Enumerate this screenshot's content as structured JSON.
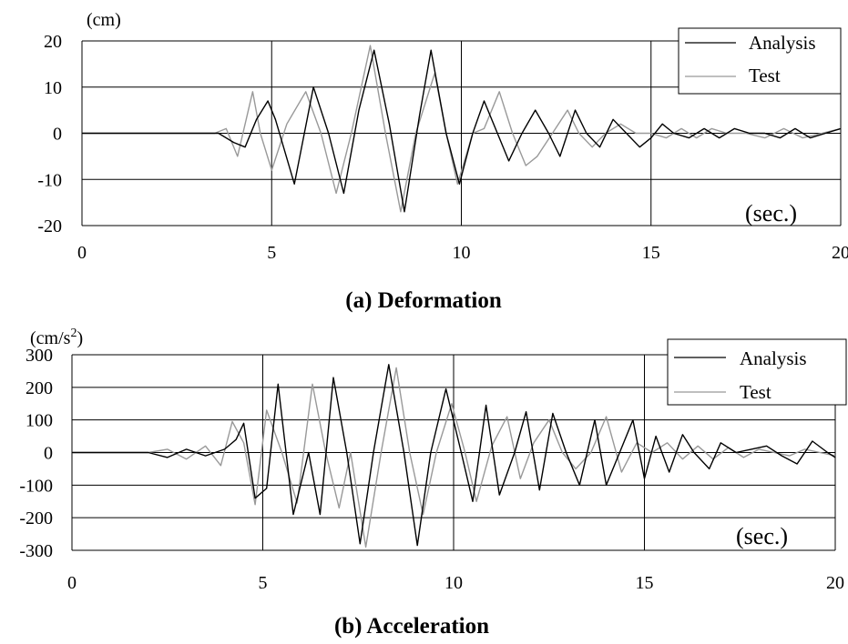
{
  "chart_data": [
    {
      "type": "line",
      "title": "(a) Deformation",
      "unit_label": "(cm)",
      "xlabel_inline": "(sec.)",
      "xlim": [
        0,
        20
      ],
      "ylim": [
        -20,
        20
      ],
      "x_ticks": [
        "0",
        "5",
        "10",
        "15",
        "20"
      ],
      "y_ticks": [
        "20",
        "10",
        "0",
        "-10",
        "-20"
      ],
      "grid": true,
      "legend_position": "top-right",
      "series": [
        {
          "name": "Analysis",
          "color": "#000000",
          "x": [
            0,
            2,
            3.6,
            4.0,
            4.3,
            4.6,
            4.9,
            5.1,
            5.6,
            6.1,
            6.5,
            6.9,
            7.3,
            7.7,
            8.1,
            8.5,
            8.9,
            9.2,
            9.6,
            9.95,
            10.3,
            10.6,
            10.9,
            11.25,
            11.6,
            11.95,
            12.3,
            12.6,
            13.0,
            13.3,
            13.65,
            14.0,
            14.35,
            14.7,
            15.0,
            15.3,
            15.6,
            16.0,
            16.4,
            16.8,
            17.2,
            17.6,
            18.0,
            18.4,
            18.8,
            19.2,
            19.6,
            20.0
          ],
          "y": [
            0,
            0,
            0,
            -2,
            -3,
            3,
            7,
            3,
            -11,
            10,
            0,
            -13,
            5,
            18,
            2,
            -17,
            4,
            18,
            0,
            -11,
            0,
            7,
            1,
            -6,
            0,
            5,
            0,
            -5,
            5,
            0,
            -3,
            3,
            0,
            -3,
            -1,
            2,
            0,
            -1,
            1,
            -1,
            1,
            0,
            0,
            -1,
            1,
            -1,
            0,
            1
          ]
        },
        {
          "name": "Test",
          "color": "#999999",
          "x": [
            0,
            2,
            3.5,
            3.8,
            4.1,
            4.5,
            4.7,
            5.0,
            5.4,
            5.9,
            6.3,
            6.7,
            7.1,
            7.6,
            8.0,
            8.4,
            8.8,
            9.3,
            9.6,
            9.9,
            10.3,
            10.6,
            11.0,
            11.35,
            11.7,
            12.0,
            12.4,
            12.8,
            13.1,
            13.45,
            13.8,
            14.2,
            14.6,
            15.0,
            15.4,
            15.8,
            16.2,
            16.6,
            17.0,
            17.5,
            18.0,
            18.5,
            19.0,
            19.5,
            20.0
          ],
          "y": [
            0,
            0,
            0,
            1,
            -5,
            9,
            0,
            -8,
            2,
            9,
            0,
            -13,
            0,
            19,
            0,
            -17,
            0,
            13,
            0,
            -11,
            0,
            1,
            9,
            0,
            -7,
            -5,
            0,
            5,
            0,
            -3,
            0,
            2,
            0,
            0,
            -1,
            1,
            -1,
            1,
            0,
            0,
            -1,
            1,
            -1,
            0,
            1
          ]
        }
      ]
    },
    {
      "type": "line",
      "title": "(b) Acceleration",
      "unit_label": "(cm/s",
      "unit_sup": "2",
      "unit_close": ")",
      "xlabel_inline": "(sec.)",
      "xlim": [
        0,
        20
      ],
      "ylim": [
        -300,
        300
      ],
      "x_ticks": [
        "0",
        "5",
        "10",
        "15",
        "20"
      ],
      "y_ticks": [
        "300",
        "200",
        "100",
        "0",
        "-100",
        "-200",
        "-300"
      ],
      "grid": true,
      "legend_position": "top-right",
      "series": [
        {
          "name": "Analysis",
          "color": "#000000",
          "x": [
            0,
            1.5,
            2.0,
            2.5,
            3.0,
            3.5,
            4.0,
            4.3,
            4.5,
            4.8,
            5.1,
            5.4,
            5.8,
            6.2,
            6.5,
            6.85,
            7.2,
            7.55,
            7.9,
            8.3,
            8.7,
            9.05,
            9.4,
            9.8,
            10.2,
            10.5,
            10.85,
            11.2,
            11.6,
            11.9,
            12.25,
            12.6,
            12.95,
            13.3,
            13.7,
            14.0,
            14.35,
            14.7,
            15.0,
            15.3,
            15.65,
            16.0,
            16.3,
            16.7,
            17.0,
            17.4,
            17.8,
            18.2,
            18.6,
            19.0,
            19.4,
            19.8,
            20.0
          ],
          "y": [
            0,
            0,
            0,
            -15,
            10,
            -10,
            10,
            40,
            90,
            -140,
            -110,
            210,
            -190,
            0,
            -190,
            230,
            0,
            -280,
            0,
            270,
            0,
            -285,
            0,
            195,
            0,
            -150,
            145,
            -130,
            0,
            125,
            -115,
            120,
            0,
            -100,
            100,
            -100,
            0,
            100,
            -80,
            50,
            -60,
            55,
            0,
            -50,
            30,
            0,
            10,
            20,
            -10,
            -35,
            35,
            0,
            -15
          ]
        },
        {
          "name": "Test",
          "color": "#999999",
          "x": [
            0,
            1.5,
            2.0,
            2.5,
            3.0,
            3.5,
            3.9,
            4.2,
            4.5,
            4.8,
            5.1,
            5.5,
            5.9,
            6.3,
            6.65,
            7.0,
            7.3,
            7.7,
            8.1,
            8.5,
            8.85,
            9.2,
            9.55,
            9.95,
            10.3,
            10.6,
            11.0,
            11.4,
            11.75,
            12.1,
            12.5,
            12.85,
            13.2,
            13.6,
            14.0,
            14.4,
            14.8,
            15.2,
            15.6,
            16.0,
            16.4,
            16.8,
            17.2,
            17.6,
            18.0,
            18.4,
            18.8,
            19.2,
            19.6,
            20.0
          ],
          "y": [
            0,
            0,
            0,
            10,
            -20,
            20,
            -40,
            95,
            30,
            -160,
            130,
            0,
            -155,
            210,
            0,
            -170,
            0,
            -290,
            0,
            260,
            0,
            -190,
            0,
            150,
            0,
            -150,
            20,
            110,
            -80,
            30,
            100,
            0,
            -50,
            0,
            110,
            -60,
            30,
            0,
            30,
            -20,
            20,
            -20,
            15,
            -15,
            10,
            0,
            -10,
            10,
            0,
            -10
          ]
        }
      ]
    }
  ]
}
